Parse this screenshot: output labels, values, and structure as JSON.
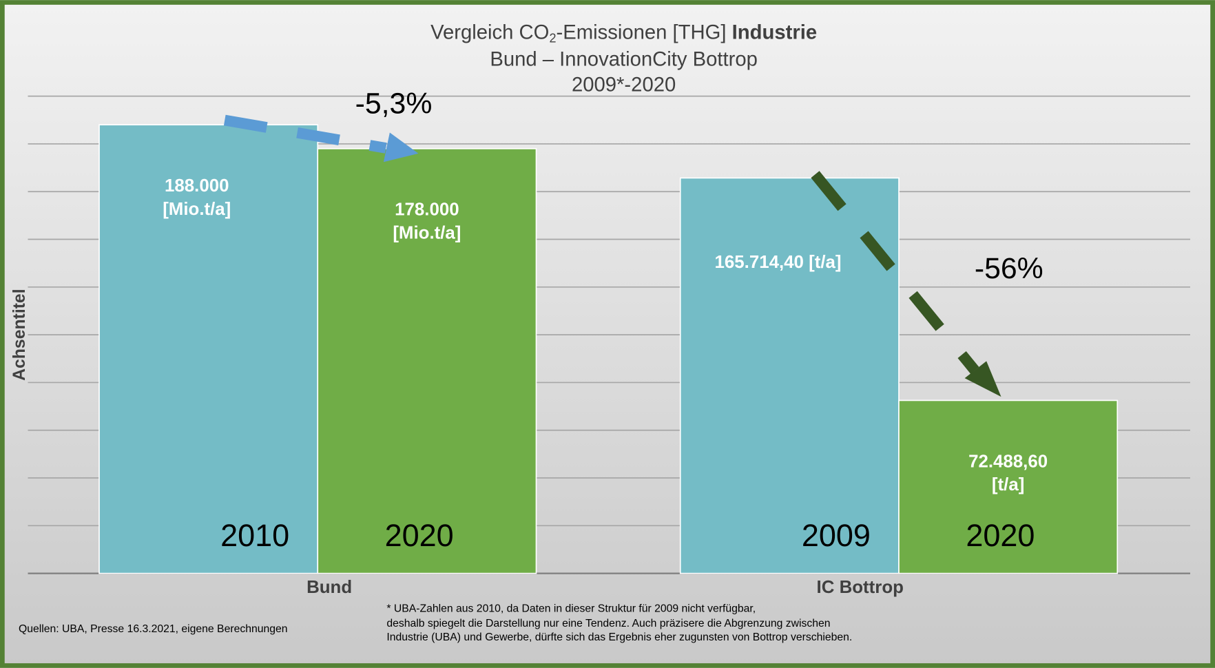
{
  "chart_data": {
    "type": "bar",
    "title_parts": [
      "Vergleich CO",
      "2",
      "-Emissionen [THG] ",
      "Industrie"
    ],
    "subtitle": [
      "Bund – InnovationCity Bottrop",
      "2009*-2020"
    ],
    "ylabel": "Achsentitel",
    "categories": [
      "Bund",
      "IC Bottrop"
    ],
    "groups": [
      [
        {
          "label": "2010",
          "value": 188000,
          "value_label": [
            "188.000",
            "[Mio.t/a]"
          ],
          "color": "#74bcc6"
        },
        {
          "label": "2020",
          "value": 178000,
          "value_label": [
            "178.000",
            "[Mio.t/a]"
          ],
          "color": "#70ad47"
        }
      ],
      [
        {
          "label": "2009",
          "value": 165714.4,
          "value_label": [
            "165.714,40 [t/a]"
          ],
          "color": "#74bcc6"
        },
        {
          "label": "2020",
          "value": 72488.6,
          "value_label": [
            "72.488,60",
            "[t/a]"
          ],
          "color": "#70ad47"
        }
      ]
    ],
    "ylim": [
      0,
      200000
    ],
    "yticks": [
      0,
      20000,
      40000,
      60000,
      80000,
      100000,
      120000,
      140000,
      160000,
      180000,
      200000
    ],
    "grid": true,
    "annotations": [
      "-5,3%",
      "-56%"
    ],
    "source": "Quellen: UBA, Presse 16.3.2021, eigene Berechnungen",
    "footnote": [
      "* UBA-Zahlen aus 2010, da Daten in dieser Struktur für 2009 nicht verfügbar,",
      "deshalb spiegelt die Darstellung nur eine Tendenz. Auch präzisere die Abgrenzung zwischen",
      "Industrie (UBA) und Gewerbe, dürfte sich das Ergebnis eher zugunsten von Bottrop verschieben."
    ]
  }
}
